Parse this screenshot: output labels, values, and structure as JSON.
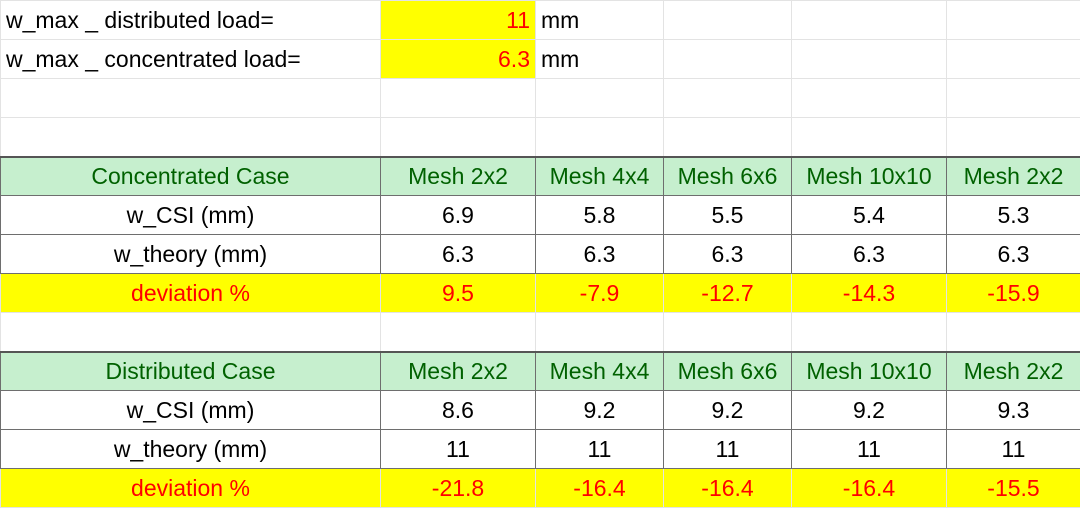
{
  "summary": [
    {
      "label": "w_max _ distributed load=",
      "value": "11",
      "unit": "mm"
    },
    {
      "label": "w_max _ concentrated load=",
      "value": "6.3",
      "unit": "mm"
    }
  ],
  "concentrated": {
    "title": "Concentrated Case",
    "headers": [
      "Mesh 2x2",
      "Mesh 4x4",
      "Mesh 6x6",
      "Mesh 10x10",
      "Mesh 2x2"
    ],
    "rows": [
      {
        "label": "w_CSI (mm)",
        "values": [
          "6.9",
          "5.8",
          "5.5",
          "5.4",
          "5.3"
        ]
      },
      {
        "label": "w_theory (mm)",
        "values": [
          "6.3",
          "6.3",
          "6.3",
          "6.3",
          "6.3"
        ]
      }
    ],
    "deviation": {
      "label": "deviation %",
      "values": [
        "9.5",
        "-7.9",
        "-12.7",
        "-14.3",
        "-15.9"
      ]
    }
  },
  "distributed": {
    "title": "Distributed Case",
    "headers": [
      "Mesh 2x2",
      "Mesh 4x4",
      "Mesh 6x6",
      "Mesh 10x10",
      "Mesh 2x2"
    ],
    "rows": [
      {
        "label": "w_CSI (mm)",
        "values": [
          "8.6",
          "9.2",
          "9.2",
          "9.2",
          "9.3"
        ]
      },
      {
        "label": "w_theory (mm)",
        "values": [
          "11",
          "11",
          "11",
          "11",
          "11"
        ]
      }
    ],
    "deviation": {
      "label": "deviation %",
      "values": [
        "-21.8",
        "-16.4",
        "-16.4",
        "-16.4",
        "-15.5"
      ]
    }
  }
}
